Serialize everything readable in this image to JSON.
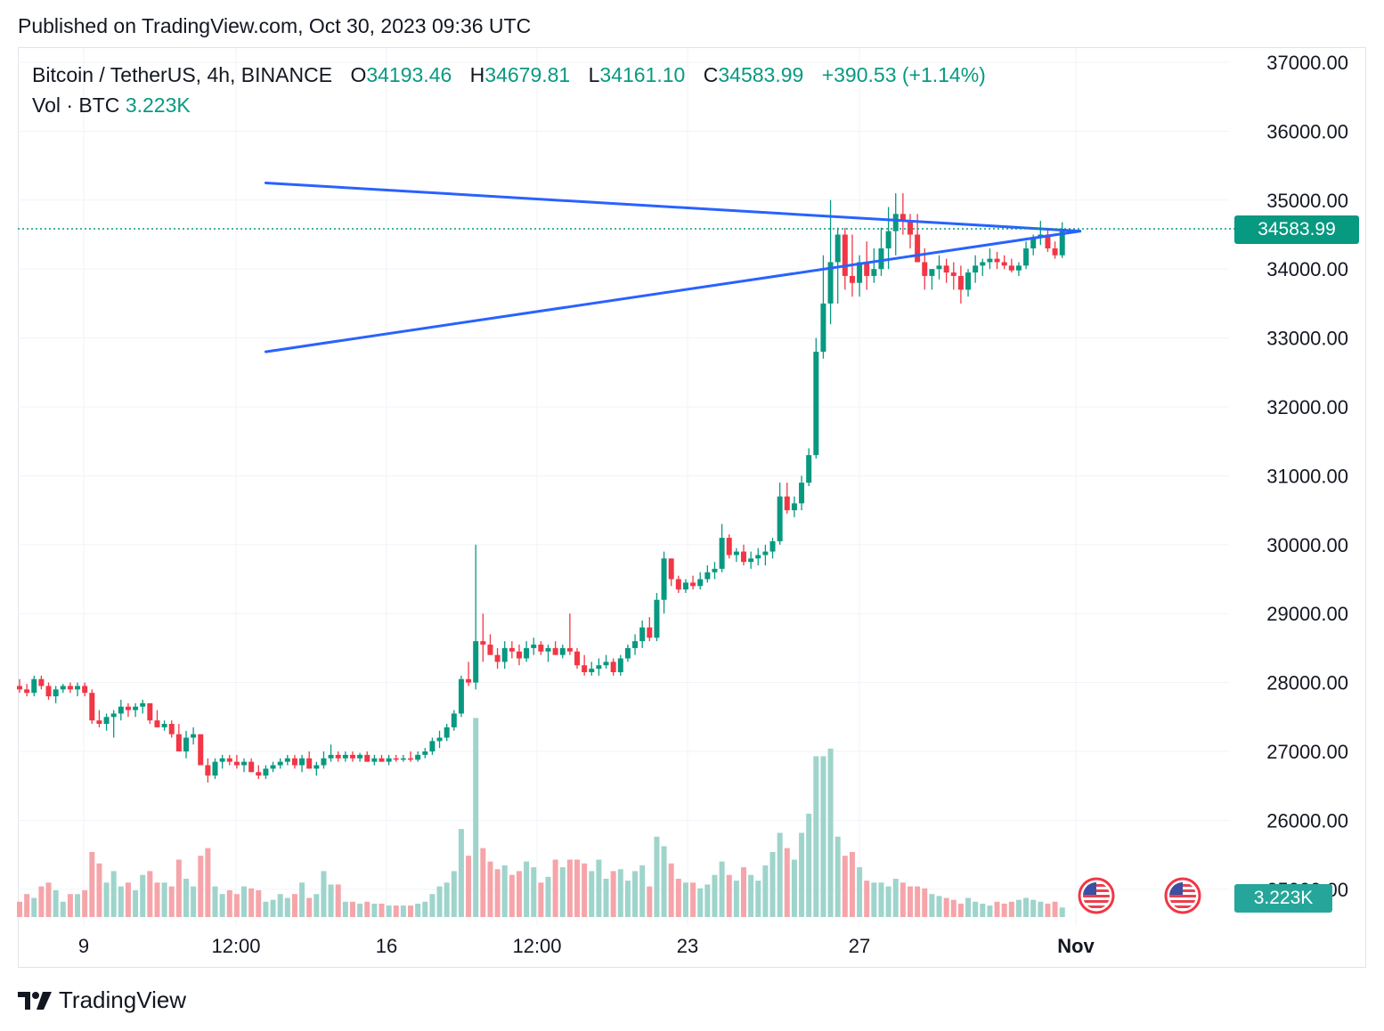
{
  "published": "Published on TradingView.com, Oct 30, 2023 09:36 UTC",
  "legend": {
    "symbol": "Bitcoin / TetherUS, 4h, BINANCE",
    "o_label": "O",
    "o_value": "34193.46",
    "h_label": "H",
    "h_value": "34679.81",
    "l_label": "L",
    "l_value": "34161.10",
    "c_label": "C",
    "c_value": "34583.99",
    "change": "+390.53 (+1.14%)",
    "vol_label": "Vol · BTC",
    "vol_value": "3.223K"
  },
  "price_tag": "34583.99",
  "vol_tag": "3.223K",
  "brand": "TradingView",
  "colors": {
    "up": "#089981",
    "down": "#f23645",
    "vol_up": "#9ed4cb",
    "vol_down": "#f5a5aa",
    "pattern_line": "#2962ff",
    "grid": "#f0f3fa",
    "price_line": "#089981"
  },
  "icons": [
    "tradingview-logo-icon",
    "us-flag-economic-event-icon"
  ],
  "chart_data": {
    "type": "candlestick",
    "title": "Bitcoin / TetherUS, 4h, BINANCE",
    "y_ticks": [
      "37000.00",
      "36000.00",
      "35000.00",
      "34000.00",
      "33000.00",
      "32000.00",
      "31000.00",
      "30000.00",
      "29000.00",
      "28000.00",
      "27000.00",
      "26000.00",
      "25000.00"
    ],
    "x_ticks": [
      "9",
      "12:00",
      "16",
      "12:00",
      "23",
      "27",
      "Nov"
    ],
    "ylim": [
      24500,
      37200
    ],
    "grid": true,
    "last_price": 34583.99,
    "last_volume": "3.223K",
    "candles": [
      [
        27950,
        28050,
        27850,
        27900,
        40
      ],
      [
        27900,
        27980,
        27800,
        27850,
        60
      ],
      [
        27850,
        28100,
        27800,
        28050,
        50
      ],
      [
        28050,
        28100,
        27900,
        27950,
        80
      ],
      [
        27950,
        28000,
        27750,
        27800,
        90
      ],
      [
        27800,
        27950,
        27700,
        27900,
        70
      ],
      [
        27900,
        27980,
        27850,
        27950,
        40
      ],
      [
        27950,
        28000,
        27850,
        27900,
        60
      ],
      [
        27900,
        28000,
        27800,
        27950,
        60
      ],
      [
        27950,
        28000,
        27800,
        27850,
        70
      ],
      [
        27850,
        27900,
        27400,
        27450,
        170
      ],
      [
        27450,
        27600,
        27350,
        27400,
        140
      ],
      [
        27400,
        27550,
        27300,
        27500,
        90
      ],
      [
        27500,
        27600,
        27200,
        27550,
        120
      ],
      [
        27550,
        27750,
        27450,
        27650,
        80
      ],
      [
        27650,
        27700,
        27500,
        27600,
        90
      ],
      [
        27600,
        27700,
        27500,
        27650,
        70
      ],
      [
        27650,
        27750,
        27550,
        27700,
        110
      ],
      [
        27700,
        27650,
        27400,
        27450,
        120
      ],
      [
        27450,
        27600,
        27350,
        27350,
        90
      ],
      [
        27350,
        27450,
        27300,
        27400,
        90
      ],
      [
        27400,
        27450,
        27200,
        27250,
        80
      ],
      [
        27250,
        27400,
        27000,
        27000,
        150
      ],
      [
        27000,
        27300,
        26900,
        27200,
        100
      ],
      [
        27200,
        27350,
        27100,
        27250,
        80
      ],
      [
        27250,
        27200,
        26800,
        26800,
        160
      ],
      [
        26800,
        26900,
        26550,
        26650,
        180
      ],
      [
        26650,
        26900,
        26600,
        26850,
        80
      ],
      [
        26850,
        26950,
        26750,
        26900,
        60
      ],
      [
        26900,
        26950,
        26800,
        26850,
        70
      ],
      [
        26850,
        26950,
        26750,
        26800,
        60
      ],
      [
        26800,
        26900,
        26700,
        26850,
        80
      ],
      [
        26850,
        26900,
        26700,
        26700,
        75
      ],
      [
        26700,
        26800,
        26600,
        26650,
        70
      ],
      [
        26650,
        26800,
        26600,
        26750,
        40
      ],
      [
        26750,
        26850,
        26700,
        26800,
        45
      ],
      [
        26800,
        26900,
        26750,
        26850,
        60
      ],
      [
        26850,
        26950,
        26800,
        26900,
        50
      ],
      [
        26900,
        26950,
        26750,
        26800,
        60
      ],
      [
        26800,
        26950,
        26700,
        26900,
        90
      ],
      [
        26900,
        27000,
        26750,
        26750,
        50
      ],
      [
        26750,
        26850,
        26650,
        26800,
        60
      ],
      [
        26800,
        27000,
        26750,
        26900,
        120
      ],
      [
        26900,
        27100,
        26850,
        26950,
        85
      ],
      [
        26950,
        27000,
        26850,
        26900,
        85
      ],
      [
        26900,
        27000,
        26850,
        26950,
        40
      ],
      [
        26950,
        27000,
        26850,
        26900,
        40
      ],
      [
        26900,
        26980,
        26850,
        26950,
        35
      ],
      [
        26950,
        27000,
        26850,
        26850,
        40
      ],
      [
        26850,
        26950,
        26800,
        26900,
        35
      ],
      [
        26900,
        26950,
        26850,
        26850,
        35
      ],
      [
        26850,
        26950,
        26800,
        26900,
        30
      ],
      [
        26900,
        26950,
        26850,
        26880,
        30
      ],
      [
        26880,
        26950,
        26850,
        26900,
        30
      ],
      [
        26900,
        27000,
        26850,
        26880,
        30
      ],
      [
        26880,
        27000,
        26850,
        26950,
        35
      ],
      [
        26950,
        27050,
        26900,
        27000,
        40
      ],
      [
        27000,
        27200,
        26950,
        27150,
        60
      ],
      [
        27150,
        27300,
        27050,
        27200,
        80
      ],
      [
        27200,
        27400,
        27150,
        27350,
        90
      ],
      [
        27350,
        27600,
        27300,
        27550,
        120
      ],
      [
        27550,
        28100,
        27500,
        28050,
        230
      ],
      [
        28050,
        28300,
        27950,
        28000,
        160
      ],
      [
        28000,
        30000,
        27900,
        28600,
        520
      ],
      [
        28600,
        29000,
        28300,
        28550,
        180
      ],
      [
        28550,
        28700,
        28400,
        28400,
        145
      ],
      [
        28400,
        28500,
        28200,
        28300,
        125
      ],
      [
        28300,
        28600,
        28200,
        28500,
        135
      ],
      [
        28500,
        28600,
        28350,
        28450,
        110
      ],
      [
        28450,
        28550,
        28250,
        28350,
        120
      ],
      [
        28350,
        28600,
        28300,
        28500,
        145
      ],
      [
        28500,
        28650,
        28400,
        28550,
        130
      ],
      [
        28550,
        28600,
        28400,
        28450,
        90
      ],
      [
        28450,
        28550,
        28300,
        28500,
        105
      ],
      [
        28500,
        28600,
        28400,
        28400,
        150
      ],
      [
        28400,
        28550,
        28350,
        28500,
        130
      ],
      [
        28500,
        29000,
        28400,
        28450,
        150
      ],
      [
        28450,
        28500,
        28200,
        28250,
        150
      ],
      [
        28250,
        28400,
        28100,
        28150,
        140
      ],
      [
        28150,
        28300,
        28100,
        28200,
        120
      ],
      [
        28200,
        28350,
        28100,
        28250,
        150
      ],
      [
        28250,
        28400,
        28200,
        28300,
        100
      ],
      [
        28300,
        28350,
        28100,
        28150,
        120
      ],
      [
        28150,
        28400,
        28100,
        28350,
        125
      ],
      [
        28350,
        28550,
        28300,
        28500,
        95
      ],
      [
        28500,
        28700,
        28400,
        28600,
        120
      ],
      [
        28600,
        28900,
        28500,
        28800,
        135
      ],
      [
        28800,
        28950,
        28600,
        28650,
        80
      ],
      [
        28650,
        29300,
        28600,
        29200,
        210
      ],
      [
        29200,
        29900,
        29000,
        29800,
        185
      ],
      [
        29800,
        29800,
        29400,
        29500,
        140
      ],
      [
        29500,
        29550,
        29300,
        29350,
        100
      ],
      [
        29350,
        29500,
        29300,
        29450,
        90
      ],
      [
        29450,
        29550,
        29350,
        29400,
        90
      ],
      [
        29400,
        29600,
        29350,
        29500,
        75
      ],
      [
        29500,
        29700,
        29450,
        29600,
        85
      ],
      [
        29600,
        29750,
        29500,
        29650,
        110
      ],
      [
        29650,
        30300,
        29600,
        30100,
        145
      ],
      [
        30100,
        30150,
        29800,
        29850,
        110
      ],
      [
        29850,
        29950,
        29750,
        29900,
        95
      ],
      [
        29900,
        30000,
        29700,
        29750,
        130
      ],
      [
        29750,
        29900,
        29650,
        29800,
        110
      ],
      [
        29800,
        29950,
        29700,
        29850,
        95
      ],
      [
        29850,
        30000,
        29700,
        29900,
        135
      ],
      [
        29900,
        30100,
        29800,
        30050,
        170
      ],
      [
        30050,
        30900,
        30000,
        30700,
        220
      ],
      [
        30700,
        30900,
        30450,
        30500,
        180
      ],
      [
        30500,
        30700,
        30400,
        30600,
        150
      ],
      [
        30600,
        31000,
        30500,
        30900,
        220
      ],
      [
        30900,
        31400,
        30850,
        31300,
        270
      ],
      [
        31300,
        33000,
        31250,
        32800,
        420
      ],
      [
        32800,
        34200,
        32700,
        33500,
        420
      ],
      [
        33500,
        35000,
        33200,
        34100,
        440
      ],
      [
        34100,
        34600,
        33500,
        34500,
        210
      ],
      [
        34500,
        34600,
        33700,
        33900,
        160
      ],
      [
        33900,
        34500,
        33600,
        33800,
        170
      ],
      [
        33800,
        34200,
        33600,
        34100,
        130
      ],
      [
        34100,
        34400,
        33700,
        33900,
        95
      ],
      [
        33900,
        34300,
        33800,
        34000,
        90
      ],
      [
        34000,
        34600,
        33900,
        34300,
        90
      ],
      [
        34300,
        34900,
        34000,
        34550,
        80
      ],
      [
        34550,
        35100,
        34200,
        34800,
        100
      ],
      [
        34800,
        35100,
        34500,
        34700,
        90
      ],
      [
        34700,
        34800,
        34300,
        34500,
        80
      ],
      [
        34500,
        34800,
        34200,
        34100,
        80
      ],
      [
        34100,
        34300,
        33700,
        33900,
        75
      ],
      [
        33900,
        34000,
        33700,
        34000,
        60
      ],
      [
        34000,
        34200,
        33850,
        34050,
        55
      ],
      [
        34050,
        34150,
        33800,
        33950,
        50
      ],
      [
        33950,
        34100,
        33700,
        33900,
        45
      ],
      [
        33900,
        34050,
        33500,
        33700,
        35
      ],
      [
        33700,
        34000,
        33600,
        33950,
        50
      ],
      [
        33950,
        34200,
        33800,
        34050,
        40
      ],
      [
        34050,
        34150,
        33900,
        34100,
        35
      ],
      [
        34100,
        34300,
        34000,
        34150,
        30
      ],
      [
        34150,
        34250,
        34000,
        34100,
        40
      ],
      [
        34100,
        34200,
        34000,
        34050,
        35
      ],
      [
        34050,
        34150,
        33950,
        33980,
        40
      ],
      [
        33980,
        34100,
        33900,
        34050,
        45
      ],
      [
        34050,
        34400,
        34000,
        34300,
        50
      ],
      [
        34300,
        34500,
        34200,
        34450,
        45
      ],
      [
        34450,
        34700,
        34350,
        34500,
        40
      ],
      [
        34500,
        34600,
        34250,
        34300,
        35
      ],
      [
        34300,
        34400,
        34150,
        34200,
        40
      ],
      [
        34200,
        34680,
        34160,
        34584,
        25
      ]
    ],
    "triangle": {
      "upper_line": [
        [
          34,
          35250
        ],
        [
          128,
          34550
        ]
      ],
      "lower_line": [
        [
          34,
          32800
        ],
        [
          128,
          34550
        ]
      ]
    }
  }
}
